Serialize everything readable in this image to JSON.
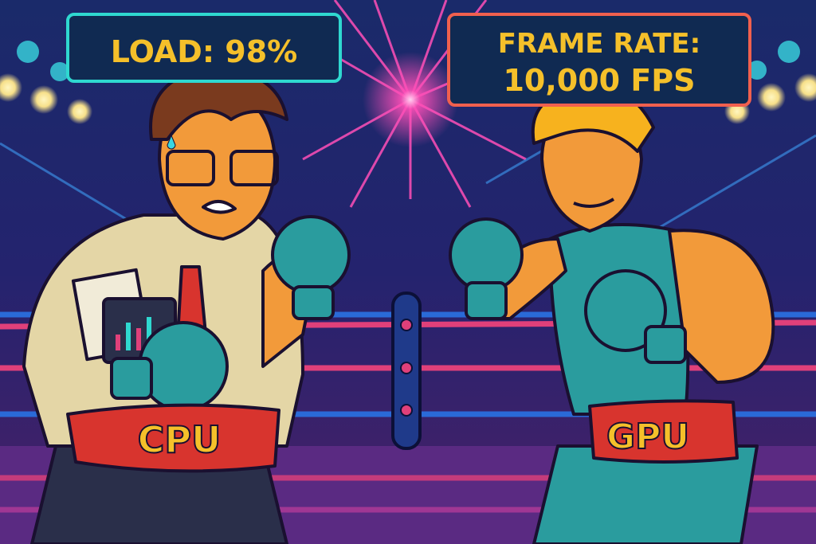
{
  "scene": {
    "cpu_sign": "LOAD: 98%",
    "gpu_sign_line1": "FRAME RATE:",
    "gpu_sign_line2": "10,000 FPS",
    "cpu_belt": "CPU",
    "gpu_belt": "GPU"
  },
  "colors": {
    "background": "#1b1e5e",
    "starburst": "#ff4fb8",
    "cpu_sign_border": "#2fd8d0",
    "gpu_sign_border": "#f0604e",
    "sign_text": "#f5c02a",
    "glove": "#2a9c9e",
    "belt": "#d8342e",
    "skin": "#f29a3a"
  }
}
